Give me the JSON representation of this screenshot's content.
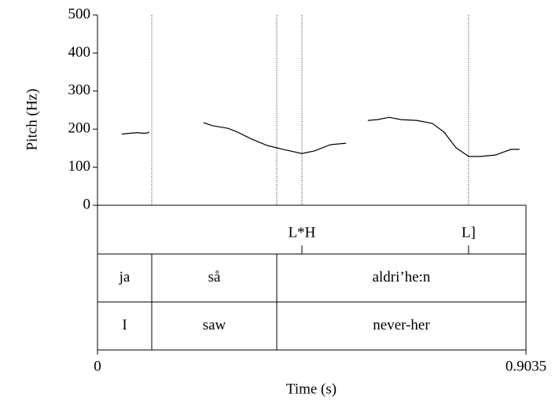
{
  "chart_data": {
    "type": "line",
    "ylabel": "Pitch (Hz)",
    "xlabel": "Time (s)",
    "xlim": [
      0,
      0.9035
    ],
    "xticks": [
      0,
      0.9035
    ],
    "ylim": [
      0,
      500
    ],
    "yticks": [
      0,
      100,
      200,
      300,
      400,
      500
    ],
    "color": "#000000",
    "x": [
      0.051,
      0.068,
      0.085,
      0.096,
      0.106,
      0.109,
      null,
      0.224,
      0.242,
      0.275,
      0.292,
      0.325,
      0.358,
      0.391,
      0.431,
      0.458,
      0.491,
      0.524,
      null,
      0.57,
      0.59,
      0.615,
      0.64,
      0.673,
      0.706,
      0.731,
      0.756,
      0.783,
      0.806,
      0.839,
      0.872,
      0.89
    ],
    "values": [
      187,
      189,
      191,
      189,
      190,
      193,
      null,
      217,
      209,
      202,
      194,
      174,
      157,
      147,
      136,
      143,
      159,
      163,
      null,
      223,
      225,
      231,
      225,
      223,
      215,
      192,
      151,
      128,
      128,
      132,
      147,
      147
    ],
    "tiers": [
      {
        "points": [
          {
            "time": 0.431,
            "label": "L*H"
          },
          {
            "time": 0.7825,
            "label": "L]"
          }
        ]
      },
      {
        "boundaries": [
          0.1144,
          0.378
        ],
        "labels": [
          "ja",
          "så",
          "aldri’he:n"
        ]
      },
      {
        "boundaries": [
          0.1144,
          0.378
        ],
        "labels": [
          "I",
          "saw",
          "never-her"
        ]
      }
    ]
  }
}
